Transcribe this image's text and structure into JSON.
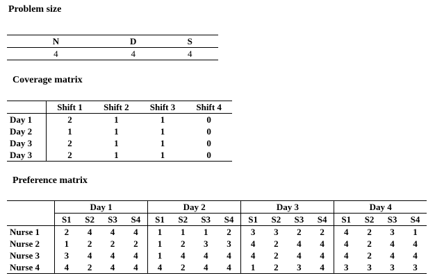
{
  "problem_size": {
    "title": "Problem size",
    "headers": [
      "N",
      "D",
      "S"
    ],
    "values": [
      "4",
      "4",
      "4"
    ]
  },
  "coverage": {
    "title": "Coverage matrix",
    "headers": [
      "Shift 1",
      "Shift 2",
      "Shift 3",
      "Shift 4"
    ],
    "rows": [
      {
        "label": "Day 1",
        "values": [
          "2",
          "1",
          "1",
          "0"
        ]
      },
      {
        "label": "Day 2",
        "values": [
          "1",
          "1",
          "1",
          "0"
        ]
      },
      {
        "label": "Day 3",
        "values": [
          "2",
          "1",
          "1",
          "0"
        ]
      },
      {
        "label": "Day 3",
        "values": [
          "2",
          "1",
          "1",
          "0"
        ]
      }
    ]
  },
  "preference": {
    "title": "Preference matrix",
    "days": [
      "Day 1",
      "Day 2",
      "Day 3",
      "Day 4"
    ],
    "shifts": [
      "S1",
      "S2",
      "S3",
      "S4"
    ],
    "rows": [
      {
        "label": "Nurse 1",
        "values": [
          "2",
          "4",
          "4",
          "4",
          "1",
          "1",
          "1",
          "2",
          "3",
          "3",
          "2",
          "2",
          "4",
          "2",
          "3",
          "1"
        ]
      },
      {
        "label": "Nurse 2",
        "values": [
          "1",
          "2",
          "2",
          "2",
          "1",
          "2",
          "3",
          "3",
          "4",
          "2",
          "4",
          "4",
          "4",
          "2",
          "4",
          "4"
        ]
      },
      {
        "label": "Nurse 3",
        "values": [
          "3",
          "4",
          "4",
          "4",
          "1",
          "4",
          "4",
          "4",
          "4",
          "2",
          "4",
          "4",
          "4",
          "2",
          "4",
          "4"
        ]
      },
      {
        "label": "Nurse 4",
        "values": [
          "4",
          "2",
          "4",
          "4",
          "4",
          "2",
          "4",
          "4",
          "1",
          "2",
          "3",
          "4",
          "3",
          "3",
          "3",
          "3"
        ]
      }
    ]
  }
}
